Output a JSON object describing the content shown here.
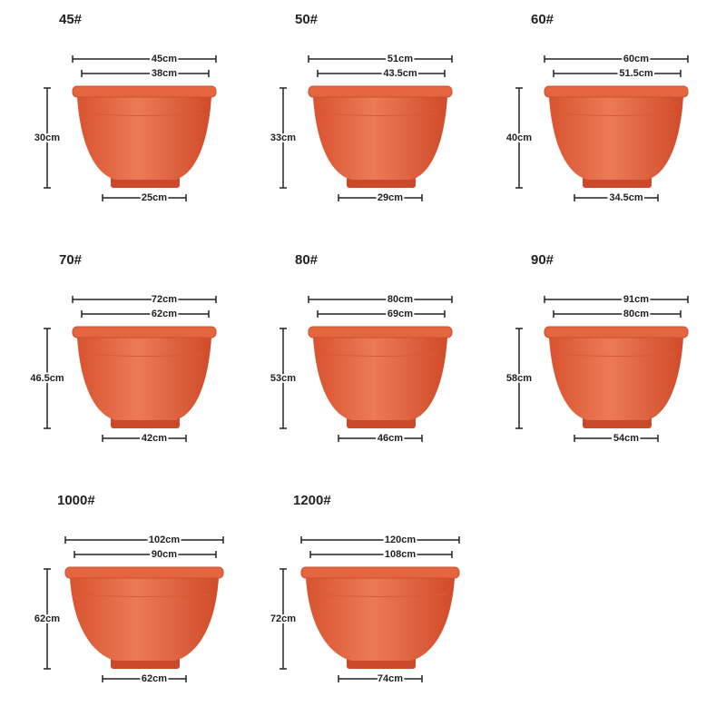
{
  "pots": [
    {
      "model": "45#",
      "outer": "45cm",
      "inner": "38cm",
      "height": "30cm",
      "bottom": "25cm"
    },
    {
      "model": "50#",
      "outer": "51cm",
      "inner": "43.5cm",
      "height": "33cm",
      "bottom": "29cm"
    },
    {
      "model": "60#",
      "outer": "60cm",
      "inner": "51.5cm",
      "height": "40cm",
      "bottom": "34.5cm"
    },
    {
      "model": "70#",
      "outer": "72cm",
      "inner": "62cm",
      "height": "46.5cm",
      "bottom": "42cm"
    },
    {
      "model": "80#",
      "outer": "80cm",
      "inner": "69cm",
      "height": "53cm",
      "bottom": "46cm"
    },
    {
      "model": "90#",
      "outer": "91cm",
      "inner": "80cm",
      "height": "58cm",
      "bottom": "54cm"
    },
    {
      "model": "1000#",
      "outer": "102cm",
      "inner": "90cm",
      "height": "62cm",
      "bottom": "62cm"
    },
    {
      "model": "1200#",
      "outer": "120cm",
      "inner": "108cm",
      "height": "72cm",
      "bottom": "74cm"
    }
  ]
}
